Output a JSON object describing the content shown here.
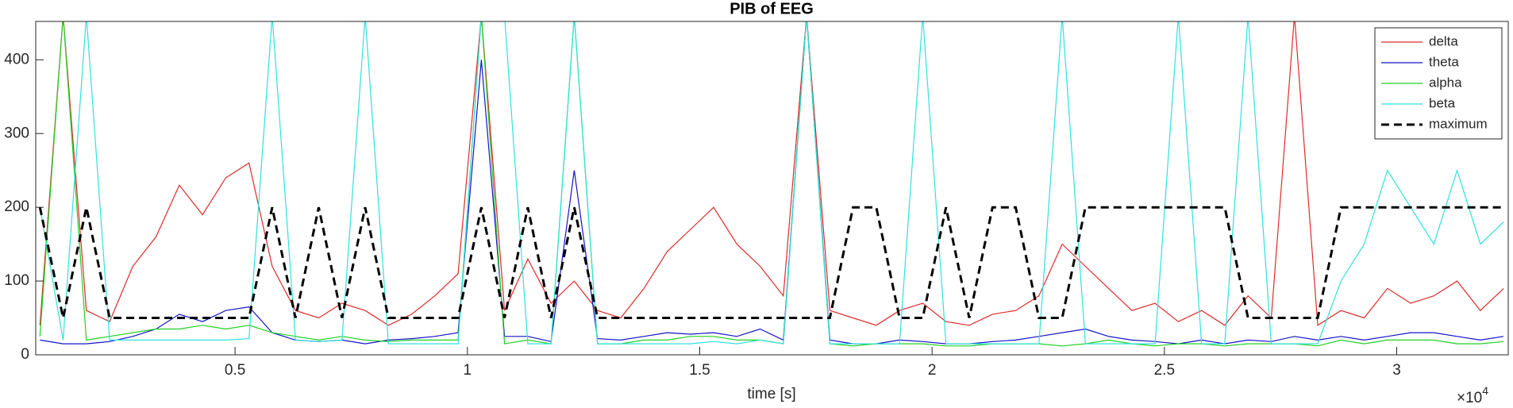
{
  "chart_data": {
    "type": "line",
    "title": "PIB of EEG",
    "x_label": "time [s]",
    "x_multiplier": {
      "base": "×10",
      "exponent": "4"
    },
    "x": [
      800,
      1300,
      1800,
      2300,
      2800,
      3300,
      3800,
      4300,
      4800,
      5300,
      5800,
      6300,
      6800,
      7300,
      7800,
      8300,
      8800,
      9300,
      9800,
      10300,
      10800,
      11300,
      11800,
      12300,
      12800,
      13300,
      13800,
      14300,
      14800,
      15300,
      15800,
      16300,
      16800,
      17300,
      17800,
      18300,
      18800,
      19300,
      19800,
      20300,
      20800,
      21300,
      21800,
      22300,
      22800,
      23300,
      23800,
      24300,
      24800,
      25300,
      25800,
      26300,
      26800,
      27300,
      27800,
      28300,
      28800,
      29300,
      29800,
      30300,
      30800,
      31300,
      31800,
      32300
    ],
    "series": [
      {
        "name": "delta",
        "color": "#e02a2a",
        "values": [
          40,
          460,
          60,
          45,
          120,
          160,
          230,
          190,
          240,
          260,
          120,
          60,
          50,
          70,
          60,
          40,
          55,
          80,
          110,
          460,
          60,
          130,
          70,
          100,
          60,
          50,
          90,
          140,
          170,
          200,
          150,
          120,
          80,
          460,
          60,
          50,
          40,
          60,
          70,
          45,
          40,
          55,
          60,
          80,
          150,
          120,
          90,
          60,
          70,
          45,
          60,
          40,
          80,
          50,
          460,
          40,
          60,
          50,
          90,
          70,
          80,
          100,
          60,
          90
        ]
      },
      {
        "name": "theta",
        "color": "#1414c8",
        "values": [
          20,
          15,
          15,
          18,
          25,
          35,
          55,
          45,
          60,
          65,
          30,
          20,
          18,
          20,
          15,
          20,
          22,
          25,
          30,
          400,
          25,
          25,
          18,
          250,
          22,
          20,
          25,
          30,
          28,
          30,
          25,
          35,
          20,
          460,
          20,
          15,
          15,
          20,
          18,
          15,
          15,
          18,
          20,
          25,
          30,
          35,
          25,
          20,
          18,
          15,
          20,
          15,
          20,
          18,
          25,
          20,
          25,
          20,
          25,
          30,
          30,
          25,
          20,
          25
        ]
      },
      {
        "name": "alpha",
        "color": "#22d022",
        "values": [
          25,
          460,
          20,
          25,
          30,
          35,
          35,
          40,
          35,
          40,
          30,
          25,
          20,
          25,
          20,
          18,
          20,
          20,
          20,
          460,
          15,
          20,
          15,
          460,
          15,
          15,
          20,
          20,
          25,
          25,
          20,
          20,
          15,
          460,
          15,
          12,
          15,
          15,
          15,
          12,
          12,
          15,
          15,
          15,
          12,
          15,
          20,
          15,
          12,
          15,
          15,
          12,
          15,
          15,
          15,
          12,
          20,
          15,
          20,
          20,
          20,
          15,
          15,
          18
        ]
      },
      {
        "name": "beta",
        "color": "#30e0e0",
        "values": [
          200,
          20,
          460,
          20,
          20,
          20,
          20,
          20,
          20,
          22,
          460,
          20,
          18,
          20,
          460,
          15,
          15,
          15,
          15,
          460,
          460,
          15,
          15,
          460,
          15,
          15,
          15,
          15,
          15,
          18,
          15,
          20,
          15,
          460,
          15,
          15,
          15,
          15,
          460,
          15,
          15,
          15,
          15,
          15,
          460,
          15,
          15,
          15,
          15,
          460,
          15,
          15,
          460,
          15,
          15,
          15,
          100,
          150,
          250,
          200,
          150,
          250,
          150,
          180
        ]
      },
      {
        "name": "maximum",
        "color": "#000000",
        "linestyle": "dashed",
        "values": [
          200,
          50,
          200,
          50,
          50,
          50,
          50,
          50,
          50,
          50,
          200,
          50,
          200,
          50,
          200,
          50,
          50,
          50,
          50,
          200,
          50,
          200,
          50,
          200,
          50,
          50,
          50,
          50,
          50,
          50,
          50,
          50,
          50,
          50,
          50,
          200,
          200,
          50,
          50,
          200,
          50,
          200,
          200,
          50,
          50,
          200,
          200,
          200,
          200,
          200,
          200,
          200,
          50,
          50,
          50,
          50,
          200,
          200,
          200,
          200,
          200,
          200,
          200,
          200
        ]
      }
    ],
    "xlim": [
      710,
      32400
    ],
    "ylim": [
      0,
      452
    ],
    "xticks": [
      {
        "value": 5000,
        "label": "0.5"
      },
      {
        "value": 10000,
        "label": "1"
      },
      {
        "value": 15000,
        "label": "1.5"
      },
      {
        "value": 20000,
        "label": "2"
      },
      {
        "value": 25000,
        "label": "2.5"
      },
      {
        "value": 30000,
        "label": "3"
      }
    ],
    "yticks": [
      0,
      100,
      200,
      300,
      400
    ],
    "grid": false,
    "legend": "upper right"
  }
}
